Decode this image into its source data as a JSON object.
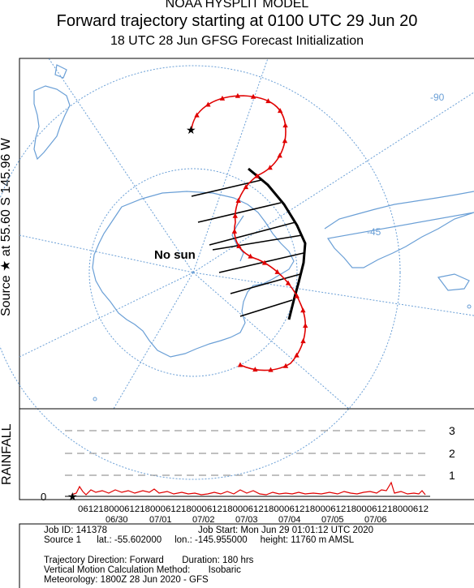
{
  "header": {
    "line1": "NOAA HYSPLIT MODEL",
    "line2": "Forward trajectory starting at 0100 UTC 29 Jun 20",
    "line3": "18 UTC 28 Jun    GFSG  Forecast Initialization"
  },
  "source_label": "Source ★  at   55.60 S  145.96 W",
  "rainfall_label": "RAINFALL",
  "annotation": "No sun",
  "map": {
    "graticule_labels": [
      "-90",
      "-45"
    ],
    "land_color": "#6a9fd6",
    "trajectory_color": "#e00000",
    "terminator_color": "#000000"
  },
  "rainfall": {
    "yticks": [
      "3",
      "2",
      "1",
      "0"
    ],
    "hour_ticks": "06121800061218000612180006121800061218000612180006121800061218000612",
    "dates": [
      "06/30",
      "07/01",
      "07/02",
      "07/03",
      "07/04",
      "07/05",
      "07/06"
    ],
    "series_color": "#e00000"
  },
  "footer": {
    "job_id": "Job ID: 141378",
    "job_start": "Job Start: Mon Jun 29 01:01:12 UTC 2020",
    "source": "Source 1      lat.: -55.602000     lon.: -145.955000     height: 11760 m AMSL",
    "direction": "Trajectory Direction: Forward       Duration: 180 hrs",
    "vertical": "Vertical Motion Calculation Method:       Isobaric",
    "meteorology": "Meteorology: 1800Z 28 Jun 2020 - GFS"
  }
}
